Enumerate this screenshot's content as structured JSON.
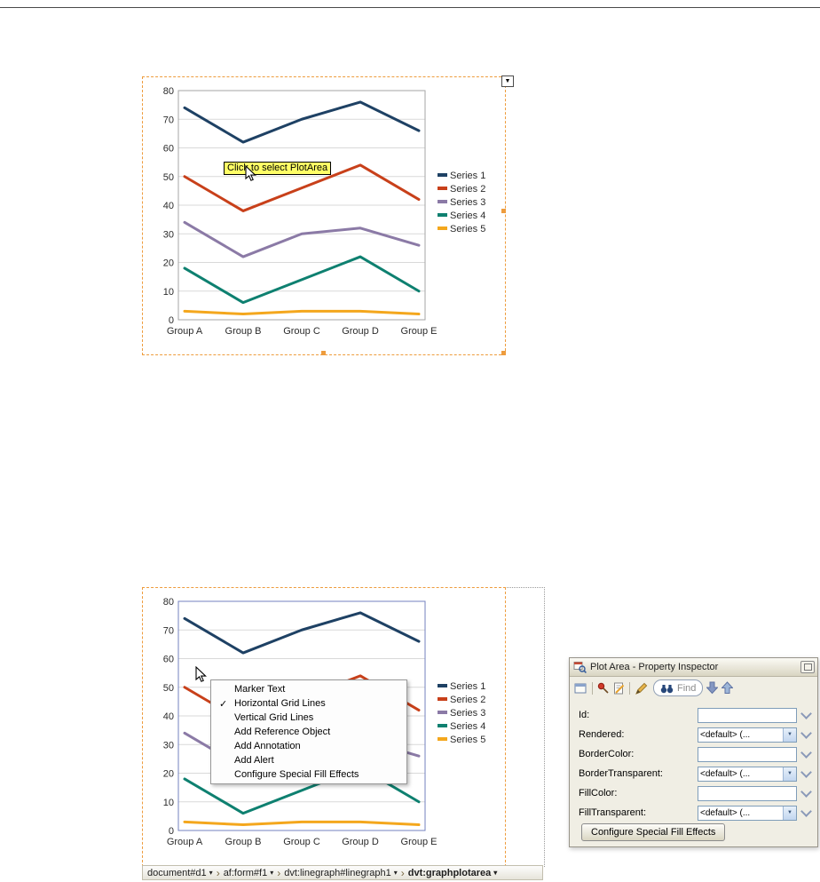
{
  "tooltip": {
    "text": "Click to select PlotArea",
    "bg": "#FFFF66"
  },
  "selection": {
    "border_color": "#EE9C3D",
    "handle_color": "#EE9C3D"
  },
  "chart_data": {
    "type": "line",
    "categories": [
      "Group A",
      "Group B",
      "Group C",
      "Group D",
      "Group E"
    ],
    "series": [
      {
        "name": "Series 1",
        "color": "#1E4164",
        "values": [
          74,
          62,
          70,
          76,
          66
        ]
      },
      {
        "name": "Series 2",
        "color": "#C8401A",
        "values": [
          50,
          38,
          46,
          54,
          42
        ]
      },
      {
        "name": "Series 3",
        "color": "#8B7AA6",
        "values": [
          34,
          22,
          30,
          32,
          26
        ]
      },
      {
        "name": "Series 4",
        "color": "#0E8070",
        "values": [
          18,
          6,
          14,
          22,
          10
        ]
      },
      {
        "name": "Series 5",
        "color": "#F4A71D",
        "values": [
          3,
          2,
          3,
          3,
          2
        ]
      }
    ],
    "ylim": [
      0,
      80
    ],
    "ytick_step": 10,
    "grid": "horizontal",
    "legend_position": "right",
    "title": "",
    "xlabel": "",
    "ylabel": ""
  },
  "charts": {
    "top": {
      "plot_border": "#A6A6A6"
    },
    "bottom": {
      "plot_border": "#7381BF"
    }
  },
  "context_menu": {
    "items": [
      {
        "label": "Marker Text",
        "checked": false
      },
      {
        "label": "Horizontal Grid Lines",
        "checked": true
      },
      {
        "label": "Vertical Grid Lines",
        "checked": false
      },
      {
        "label": "Add Reference Object",
        "checked": false
      },
      {
        "label": "Add Annotation",
        "checked": false
      },
      {
        "label": "Add Alert",
        "checked": false
      },
      {
        "label": "Configure Special Fill Effects",
        "checked": false
      }
    ]
  },
  "inspector": {
    "title": "Plot Area - Property Inspector",
    "find_placeholder": "Find",
    "fields": [
      {
        "label": "Id:",
        "type": "text",
        "value": ""
      },
      {
        "label": "Rendered:",
        "type": "combo",
        "value": "<default> (..."
      },
      {
        "label": "BorderColor:",
        "type": "text",
        "value": ""
      },
      {
        "label": "BorderTransparent:",
        "type": "combo",
        "value": "<default> (..."
      },
      {
        "label": "FillColor:",
        "type": "text",
        "value": ""
      },
      {
        "label": "FillTransparent:",
        "type": "combo",
        "value": "<default> (..."
      }
    ],
    "button": "Configure Special Fill Effects"
  },
  "breadcrumb": {
    "items": [
      {
        "label": "document#d1",
        "bold": false
      },
      {
        "label": "af:form#f1",
        "bold": false
      },
      {
        "label": "dvt:linegraph#linegraph1",
        "bold": false
      },
      {
        "label": "dvt:graphplotarea",
        "bold": true
      }
    ]
  }
}
